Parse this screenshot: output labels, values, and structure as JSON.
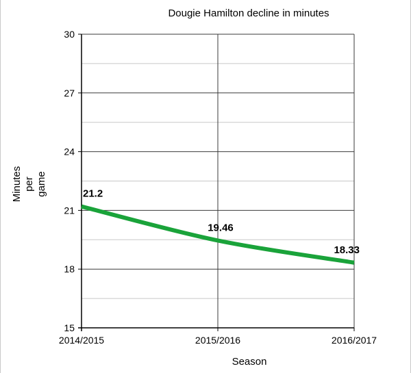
{
  "chart_data": {
    "type": "line",
    "title": "Dougie Hamilton decline in minutes",
    "xlabel": "Season",
    "ylabel_lines": [
      "Minutes",
      "per",
      "game"
    ],
    "categories": [
      "2014/2015",
      "2015/2016",
      "2016/2017"
    ],
    "series": [
      {
        "values": [
          21.2,
          19.46,
          18.33
        ],
        "data_labels": [
          "21.2",
          "19.46",
          "18.33"
        ],
        "color": "#1aa33a"
      }
    ],
    "ylim": [
      15,
      30
    ],
    "y_ticks": [
      15,
      18,
      21,
      24,
      27,
      30
    ],
    "y_minor_step": 1.5,
    "grid": true,
    "legend": "none"
  }
}
